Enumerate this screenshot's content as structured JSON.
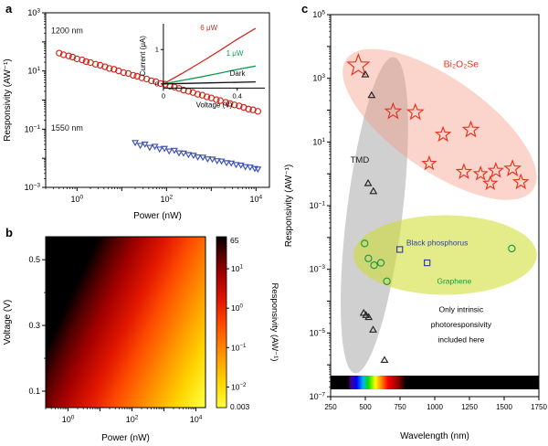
{
  "figure": {
    "panels": [
      {
        "label": "a"
      },
      {
        "label": "b"
      },
      {
        "label": "c"
      }
    ]
  },
  "chart_data": [
    {
      "id": "a",
      "type": "scatter",
      "xlabel": "Power (nW)",
      "ylabel": "Responsivity (AW⁻¹)",
      "xscale": "log",
      "yscale": "log",
      "xlim_exp": [
        -0.7,
        4.3
      ],
      "ylim_exp": [
        -3,
        3
      ],
      "xtick_exps": [
        0,
        2,
        4
      ],
      "ytick_exps": [
        -3,
        -1,
        1,
        3
      ],
      "series": [
        {
          "name": "1200 nm",
          "marker": "circle-open",
          "color": "#cf2418",
          "label_anchor": {
            "x_exp": -0.58,
            "y_exp": 2.3
          },
          "x": [
            0.4,
            0.5,
            0.65,
            0.8,
            1.0,
            1.3,
            1.6,
            2.0,
            2.6,
            3.3,
            4.2,
            5.3,
            6.7,
            8.5,
            11,
            14,
            18,
            22,
            28,
            36,
            46,
            58,
            74,
            94,
            120,
            150,
            190,
            240,
            310,
            390,
            500,
            630,
            800,
            1000,
            1300,
            1600,
            2100,
            2600,
            3300,
            4200,
            5300,
            6800,
            8600,
            11000
          ],
          "y": [
            41,
            36,
            33,
            30,
            26,
            24,
            21,
            19.5,
            17,
            15.8,
            14,
            12.2,
            11.4,
            10.1,
            8.8,
            8.2,
            7.1,
            6.6,
            5.8,
            5.3,
            4.6,
            4.3,
            3.7,
            3.5,
            3.0,
            2.8,
            2.5,
            2.2,
            2.0,
            1.82,
            1.58,
            1.47,
            1.28,
            1.18,
            1.03,
            0.96,
            0.83,
            0.77,
            0.68,
            0.63,
            0.56,
            0.49,
            0.46,
            0.41
          ]
        },
        {
          "name": "1550 nm",
          "marker": "triangle-down-open",
          "color": "#3c50b4",
          "label_anchor": {
            "x_exp": -0.58,
            "y_exp": -1.05
          },
          "x": [
            20,
            26,
            33,
            42,
            55,
            70,
            90,
            115,
            150,
            190,
            240,
            310,
            400,
            500,
            650,
            830,
            1060,
            1350,
            1700,
            2200,
            2800,
            3600,
            4600,
            5800,
            7400,
            9400,
            11000
          ],
          "y": [
            0.035,
            0.028,
            0.031,
            0.024,
            0.026,
            0.021,
            0.022,
            0.018,
            0.019,
            0.0155,
            0.0152,
            0.0135,
            0.0128,
            0.0112,
            0.011,
            0.0096,
            0.0094,
            0.0083,
            0.0081,
            0.0071,
            0.0069,
            0.0061,
            0.0059,
            0.0052,
            0.005,
            0.0045,
            0.0043
          ]
        }
      ],
      "inset": {
        "xlabel": "Voltage (V)",
        "ylabel": "Current (μA)",
        "xlim": [
          0,
          0.55
        ],
        "ylim": [
          -0.12,
          1.75
        ],
        "xticks": [
          0,
          0.4
        ],
        "yticks": [
          0,
          1
        ],
        "series": [
          {
            "name": "6 μW",
            "color": "#d42a1e",
            "label_x": 0.2,
            "label_y": 1.56,
            "x": [
              0,
              0.1,
              0.2,
              0.3,
              0.4,
              0.5
            ],
            "y": [
              0,
              0.3,
              0.62,
              0.95,
              1.3,
              1.62
            ]
          },
          {
            "name": "1 μW",
            "color": "#0e9c50",
            "label_x": 0.34,
            "label_y": 0.82,
            "x": [
              0,
              0.1,
              0.2,
              0.3,
              0.4,
              0.5
            ],
            "y": [
              0,
              0.1,
              0.2,
              0.31,
              0.42,
              0.52
            ]
          },
          {
            "name": "Dark",
            "color": "#111111",
            "label_x": 0.36,
            "label_y": 0.24,
            "x": [
              0,
              0.25,
              0.5
            ],
            "y": [
              0,
              0.03,
              0.06
            ]
          }
        ]
      }
    },
    {
      "id": "b",
      "type": "heatmap",
      "xlabel": "Power (nW)",
      "ylabel": "Voltage (V)",
      "colorbar_label": "Responsivity (AW⁻¹)",
      "xlim_exp": [
        -0.7,
        4.3
      ],
      "ylim": [
        0.05,
        0.57
      ],
      "xtick_exps": [
        0,
        2,
        4
      ],
      "yticks": [
        0.1,
        0.3,
        0.5
      ],
      "ytick_minor": [
        0.2,
        0.4
      ],
      "model": {
        "k0": 0.455,
        "kP": -0.75,
        "kV": 3.6
      },
      "value_range": [
        0.003,
        65
      ],
      "colorbar_tick_exps": [
        1,
        0,
        -1,
        -2
      ],
      "colorbar_end_labels": [
        "65",
        "0.003"
      ],
      "colormap": [
        {
          "t": 0.0,
          "color": "#ffff3c"
        },
        {
          "t": 0.15,
          "color": "#ffd400"
        },
        {
          "t": 0.32,
          "color": "#ff9000"
        },
        {
          "t": 0.48,
          "color": "#ff4e00"
        },
        {
          "t": 0.62,
          "color": "#e31800"
        },
        {
          "t": 0.78,
          "color": "#a30000"
        },
        {
          "t": 0.9,
          "color": "#520000"
        },
        {
          "t": 1.0,
          "color": "#000000"
        }
      ]
    },
    {
      "id": "c",
      "type": "scatter",
      "xlabel": "Wavelength (nm)",
      "ylabel": "Responsivity (AW⁻¹)",
      "xlim": [
        250,
        1750
      ],
      "ylim_exp": [
        -7,
        5
      ],
      "xticks": [
        250,
        500,
        750,
        1000,
        1250,
        1500,
        1750
      ],
      "ytick_exps": [
        -7,
        -5,
        -3,
        -1,
        1,
        3,
        5
      ],
      "series": [
        {
          "name": "Bi₂O₂Se",
          "marker": "star-open",
          "color": "#e8311e",
          "x": [
            450,
            700,
            860,
            1060,
            1260,
            960,
            1210,
            1330,
            1440,
            1560,
            1400,
            1620
          ],
          "y": [
            2500,
            90,
            85,
            17,
            24,
            2.1,
            1.15,
            1.0,
            1.25,
            1.45,
            0.5,
            0.55
          ],
          "sizes": [
            9,
            6.5,
            6.5,
            6,
            6.5,
            5.5,
            6,
            5.5,
            6,
            6.5,
            5.5,
            6
          ]
        },
        {
          "name": "TMD",
          "marker": "triangle-up-open",
          "color": "#222222",
          "x": [
            500,
            545,
            520,
            558,
            488,
            505,
            524,
            556,
            638
          ],
          "y": [
            1300,
            290,
            0.5,
            0.28,
            4.2e-05,
            3.6e-05,
            3.1e-05,
            1.25e-05,
            1.4e-06
          ]
        },
        {
          "name": "Black phosphorus",
          "marker": "square-open",
          "color": "#2e3f9e",
          "x": [
            748,
            945
          ],
          "y": [
            0.0042,
            0.0016
          ]
        },
        {
          "name": "Graphene",
          "marker": "circle-open",
          "color": "#159a43",
          "x": [
            495,
            522,
            563,
            612,
            655,
            1555
          ],
          "y": [
            0.0065,
            0.0022,
            0.00135,
            0.0016,
            0.00042,
            0.0045
          ]
        }
      ],
      "ellipses": [
        {
          "name": "tmd-region",
          "fill": "rgba(150,150,150,0.45)",
          "cx_nm": 565,
          "cy_exp": -1.3,
          "rx_nm": 200,
          "ry_dec": 5.0,
          "rot": 7
        },
        {
          "name": "bi2o2se-region",
          "fill": "rgba(246,148,125,0.40)",
          "cx_nm": 1035,
          "cy_exp": 1.55,
          "rx_nm": 820,
          "ry_dec": 1.45,
          "rot": 35
        },
        {
          "name": "graphene-region",
          "fill": "rgba(205,220,40,0.55)",
          "cx_nm": 1075,
          "cy_exp": -2.55,
          "rx_nm": 660,
          "ry_dec": 1.25,
          "rot": 0
        }
      ],
      "labels": [
        {
          "text": "Bi₂O₂Se",
          "color": "#e8311e",
          "x_nm": 1190,
          "y_exp": 3.35,
          "size": 10.5,
          "anchor": "middle"
        },
        {
          "text": "TMD",
          "color": "#1a1a1a",
          "x_nm": 460,
          "y_exp": 0.35,
          "size": 9.5,
          "anchor": "middle"
        },
        {
          "text": "Black phosphorus",
          "color": "#2e3f9e",
          "x_nm": 795,
          "y_exp": -2.25,
          "size": 8.5,
          "anchor": "start"
        },
        {
          "text": "Graphene",
          "color": "#159a43",
          "x_nm": 1140,
          "y_exp": -3.45,
          "size": 8.5,
          "anchor": "middle"
        },
        {
          "text": "Only intrinsic",
          "color": "#000000",
          "x_nm": 1190,
          "y_exp": -4.35,
          "size": 8.5,
          "anchor": "middle"
        },
        {
          "text": "photoresponsivity",
          "color": "#000000",
          "x_nm": 1190,
          "y_exp": -4.82,
          "size": 8.5,
          "anchor": "middle"
        },
        {
          "text": "included here",
          "color": "#000000",
          "x_nm": 1190,
          "y_exp": -5.29,
          "size": 8.5,
          "anchor": "middle"
        }
      ],
      "spectrum_bar": {
        "stops": [
          {
            "offset": 0,
            "color": "#000000"
          },
          {
            "offset": 0.085,
            "color": "#000000"
          },
          {
            "offset": 0.095,
            "color": "#4b0082"
          },
          {
            "offset": 0.125,
            "color": "#0000ff"
          },
          {
            "offset": 0.155,
            "color": "#00b0ff"
          },
          {
            "offset": 0.18,
            "color": "#00e000"
          },
          {
            "offset": 0.215,
            "color": "#ffff00"
          },
          {
            "offset": 0.245,
            "color": "#ff8000"
          },
          {
            "offset": 0.275,
            "color": "#ff0000"
          },
          {
            "offset": 0.33,
            "color": "#800000"
          },
          {
            "offset": 0.36,
            "color": "#000000"
          },
          {
            "offset": 1,
            "color": "#000000"
          }
        ]
      }
    }
  ]
}
